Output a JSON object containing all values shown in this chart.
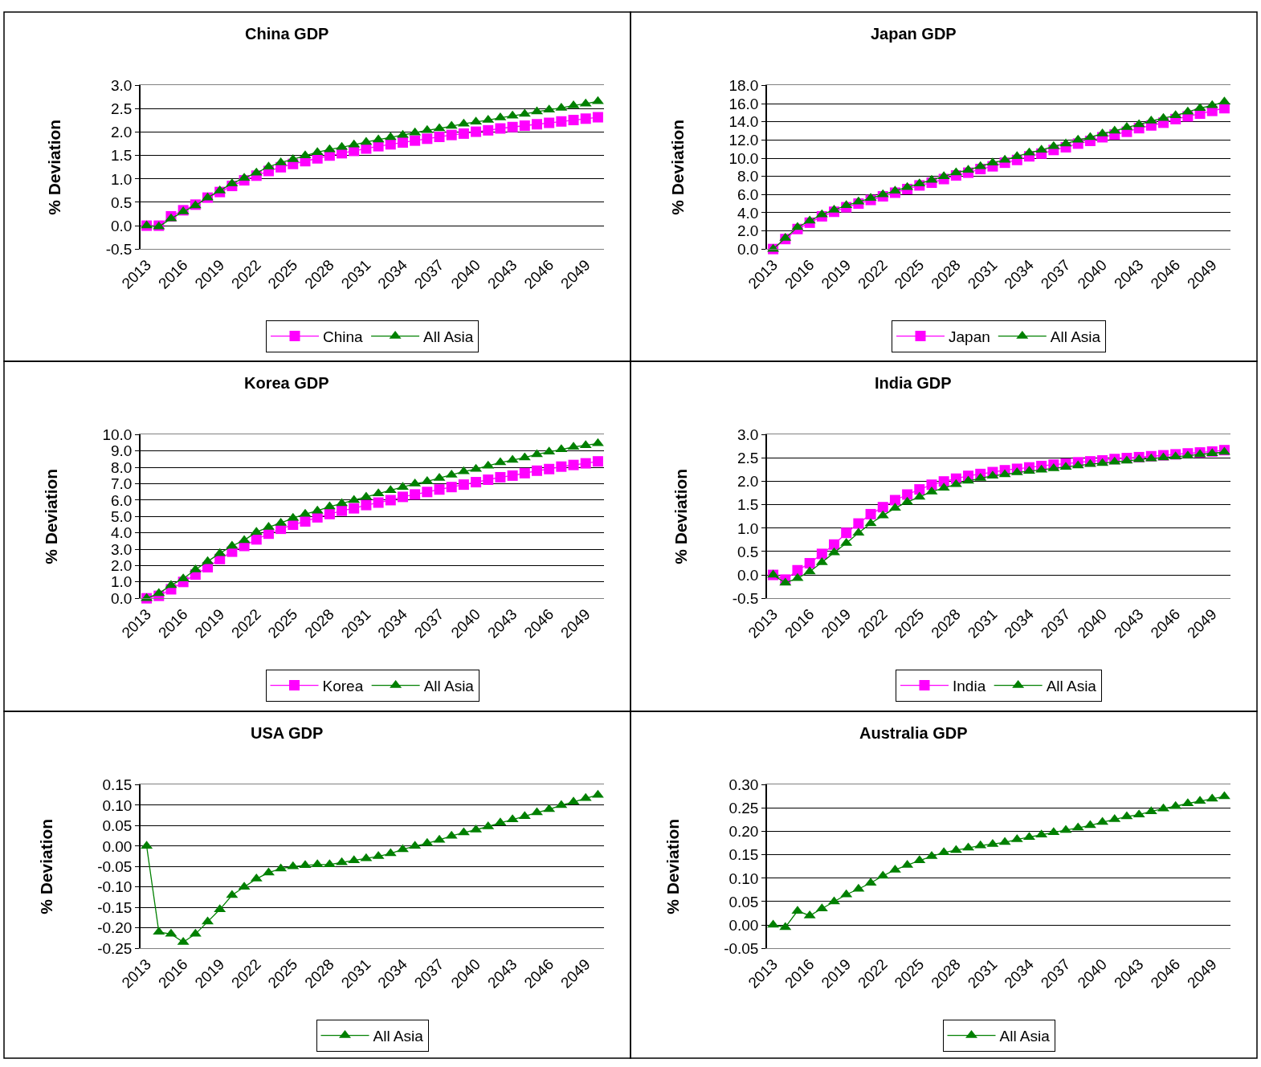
{
  "chart_data": [
    {
      "type": "line",
      "title": "China GDP",
      "ylabel": "% Deviation",
      "categories": [
        "2013",
        null,
        null,
        "2016",
        null,
        null,
        "2019",
        null,
        null,
        "2022",
        null,
        null,
        "2025",
        null,
        null,
        "2028",
        null,
        null,
        "2031",
        null,
        null,
        "2034",
        null,
        null,
        "2037",
        null,
        null,
        "2040",
        null,
        null,
        "2043",
        null,
        null,
        "2046",
        null,
        null,
        "2049",
        null
      ],
      "series": [
        {
          "name": "China",
          "color": "#ff00ff",
          "marker": "square",
          "values": [
            0.0,
            0.0,
            0.2,
            0.33,
            0.45,
            0.6,
            0.72,
            0.85,
            0.97,
            1.07,
            1.17,
            1.25,
            1.32,
            1.38,
            1.44,
            1.5,
            1.55,
            1.6,
            1.65,
            1.7,
            1.74,
            1.78,
            1.82,
            1.86,
            1.9,
            1.94,
            1.97,
            2.01,
            2.04,
            2.08,
            2.11,
            2.14,
            2.17,
            2.2,
            2.23,
            2.26,
            2.29,
            2.32
          ]
        },
        {
          "name": "All Asia",
          "color": "#008000",
          "marker": "triangle",
          "values": [
            0.0,
            -0.02,
            0.15,
            0.3,
            0.43,
            0.6,
            0.75,
            0.9,
            1.02,
            1.13,
            1.26,
            1.35,
            1.42,
            1.5,
            1.57,
            1.63,
            1.68,
            1.73,
            1.79,
            1.84,
            1.89,
            1.94,
            1.99,
            2.04,
            2.08,
            2.13,
            2.18,
            2.22,
            2.26,
            2.31,
            2.35,
            2.39,
            2.44,
            2.48,
            2.52,
            2.57,
            2.61,
            2.66
          ]
        }
      ],
      "ylim": [
        -0.5,
        3.0
      ],
      "yticks": [
        -0.5,
        {
          "value": 0,
          "label": "0.0"
        },
        0.5,
        {
          "value": 1,
          "label": "1.0"
        },
        1.5,
        {
          "value": 2,
          "label": "2.0"
        },
        2.5,
        {
          "value": 3,
          "label": "3.0"
        }
      ],
      "grid": "y",
      "legend": "bottom"
    },
    {
      "type": "line",
      "title": "Japan GDP",
      "ylabel": "% Deviation",
      "categories": [
        "2013",
        null,
        null,
        "2016",
        null,
        null,
        "2019",
        null,
        null,
        "2022",
        null,
        null,
        "2025",
        null,
        null,
        "2028",
        null,
        null,
        "2031",
        null,
        null,
        "2034",
        null,
        null,
        "2037",
        null,
        null,
        "2040",
        null,
        null,
        "2043",
        null,
        null,
        "2046",
        null,
        null,
        "2049",
        null
      ],
      "series": [
        {
          "name": "Japan",
          "color": "#ff00ff",
          "marker": "square",
          "values": [
            0.0,
            1.1,
            2.2,
            2.9,
            3.6,
            4.1,
            4.6,
            5.0,
            5.4,
            5.8,
            6.2,
            6.6,
            7.0,
            7.3,
            7.7,
            8.1,
            8.4,
            8.8,
            9.1,
            9.5,
            9.8,
            10.2,
            10.5,
            10.9,
            11.2,
            11.6,
            11.9,
            12.3,
            12.6,
            12.9,
            13.3,
            13.6,
            13.9,
            14.3,
            14.6,
            14.9,
            15.2,
            15.5
          ]
        },
        {
          "name": "All Asia",
          "color": "#008000",
          "marker": "triangle",
          "values": [
            0.0,
            1.2,
            2.4,
            3.1,
            3.8,
            4.3,
            4.8,
            5.2,
            5.6,
            6.0,
            6.4,
            6.8,
            7.2,
            7.6,
            8.0,
            8.4,
            8.7,
            9.1,
            9.5,
            9.8,
            10.2,
            10.6,
            10.9,
            11.3,
            11.6,
            12.0,
            12.3,
            12.7,
            13.0,
            13.4,
            13.7,
            14.1,
            14.4,
            14.7,
            15.1,
            15.5,
            15.8,
            16.2
          ]
        }
      ],
      "ylim": [
        0,
        18
      ],
      "yticks": [
        {
          "value": 0,
          "label": "0.0"
        },
        {
          "value": 2,
          "label": "2.0"
        },
        {
          "value": 4,
          "label": "4.0"
        },
        {
          "value": 6,
          "label": "6.0"
        },
        {
          "value": 8,
          "label": "8.0"
        },
        {
          "value": 10,
          "label": "10.0"
        },
        {
          "value": 12,
          "label": "12.0"
        },
        {
          "value": 14,
          "label": "14.0"
        },
        {
          "value": 16,
          "label": "16.0"
        },
        {
          "value": 18,
          "label": "18.0"
        }
      ],
      "grid": "y",
      "legend": "bottom"
    },
    {
      "type": "line",
      "title": "Korea GDP",
      "ylabel": "% Deviation",
      "categories": [
        "2013",
        null,
        null,
        "2016",
        null,
        null,
        "2019",
        null,
        null,
        "2022",
        null,
        null,
        "2025",
        null,
        null,
        "2028",
        null,
        null,
        "2031",
        null,
        null,
        "2034",
        null,
        null,
        "2037",
        null,
        null,
        "2040",
        null,
        null,
        "2043",
        null,
        null,
        "2046",
        null,
        null,
        "2049",
        null
      ],
      "series": [
        {
          "name": "Korea",
          "color": "#ff00ff",
          "marker": "square",
          "values": [
            0.0,
            0.15,
            0.55,
            1.0,
            1.45,
            1.9,
            2.4,
            2.85,
            3.2,
            3.6,
            3.95,
            4.25,
            4.5,
            4.7,
            4.95,
            5.15,
            5.35,
            5.5,
            5.7,
            5.85,
            6.0,
            6.2,
            6.35,
            6.5,
            6.65,
            6.8,
            6.95,
            7.1,
            7.25,
            7.4,
            7.5,
            7.65,
            7.8,
            7.9,
            8.05,
            8.15,
            8.25,
            8.37
          ]
        },
        {
          "name": "All Asia",
          "color": "#008000",
          "marker": "triangle",
          "values": [
            0.0,
            0.3,
            0.8,
            1.2,
            1.75,
            2.25,
            2.75,
            3.2,
            3.55,
            4.05,
            4.35,
            4.6,
            4.9,
            5.15,
            5.35,
            5.6,
            5.8,
            6.0,
            6.2,
            6.4,
            6.6,
            6.8,
            7.0,
            7.15,
            7.35,
            7.55,
            7.75,
            7.9,
            8.1,
            8.3,
            8.45,
            8.6,
            8.8,
            8.95,
            9.1,
            9.25,
            9.35,
            9.47
          ]
        }
      ],
      "ylim": [
        0,
        10
      ],
      "yticks": [
        {
          "value": 0,
          "label": "0.0"
        },
        {
          "value": 1,
          "label": "1.0"
        },
        {
          "value": 2,
          "label": "2.0"
        },
        {
          "value": 3,
          "label": "3.0"
        },
        {
          "value": 4,
          "label": "4.0"
        },
        {
          "value": 5,
          "label": "5.0"
        },
        {
          "value": 6,
          "label": "6.0"
        },
        {
          "value": 7,
          "label": "7.0"
        },
        {
          "value": 8,
          "label": "8.0"
        },
        {
          "value": 9,
          "label": "9.0"
        },
        {
          "value": 10,
          "label": "10.0"
        }
      ],
      "grid": "y",
      "legend": "bottom"
    },
    {
      "type": "line",
      "title": "India GDP",
      "ylabel": "% Deviation",
      "categories": [
        "2013",
        null,
        null,
        "2016",
        null,
        null,
        "2019",
        null,
        null,
        "2022",
        null,
        null,
        "2025",
        null,
        null,
        "2028",
        null,
        null,
        "2031",
        null,
        null,
        "2034",
        null,
        null,
        "2037",
        null,
        null,
        "2040",
        null,
        null,
        "2043",
        null,
        null,
        "2046",
        null,
        null,
        "2049",
        null
      ],
      "series": [
        {
          "name": "India",
          "color": "#ff00ff",
          "marker": "square",
          "values": [
            0.0,
            -0.1,
            0.1,
            0.25,
            0.45,
            0.65,
            0.9,
            1.1,
            1.3,
            1.45,
            1.6,
            1.72,
            1.83,
            1.93,
            2.0,
            2.06,
            2.12,
            2.16,
            2.2,
            2.24,
            2.27,
            2.3,
            2.33,
            2.36,
            2.38,
            2.41,
            2.43,
            2.45,
            2.48,
            2.5,
            2.52,
            2.54,
            2.56,
            2.58,
            2.6,
            2.62,
            2.64,
            2.67
          ]
        },
        {
          "name": "All Asia",
          "color": "#008000",
          "marker": "triangle",
          "values": [
            0.0,
            -0.17,
            -0.07,
            0.07,
            0.27,
            0.48,
            0.68,
            0.9,
            1.1,
            1.27,
            1.43,
            1.56,
            1.67,
            1.78,
            1.86,
            1.94,
            2.01,
            2.07,
            2.12,
            2.15,
            2.19,
            2.22,
            2.25,
            2.28,
            2.31,
            2.34,
            2.37,
            2.39,
            2.42,
            2.44,
            2.47,
            2.49,
            2.51,
            2.53,
            2.55,
            2.58,
            2.6,
            2.63
          ]
        }
      ],
      "ylim": [
        -0.5,
        3.0
      ],
      "yticks": [
        -0.5,
        {
          "value": 0,
          "label": "0.0"
        },
        0.5,
        {
          "value": 1,
          "label": "1.0"
        },
        1.5,
        {
          "value": 2,
          "label": "2.0"
        },
        2.5,
        {
          "value": 3,
          "label": "3.0"
        }
      ],
      "grid": "y",
      "legend": "bottom"
    },
    {
      "type": "line",
      "title": "USA GDP",
      "ylabel": "% Deviation",
      "categories": [
        "2013",
        null,
        null,
        "2016",
        null,
        null,
        "2019",
        null,
        null,
        "2022",
        null,
        null,
        "2025",
        null,
        null,
        "2028",
        null,
        null,
        "2031",
        null,
        null,
        "2034",
        null,
        null,
        "2037",
        null,
        null,
        "2040",
        null,
        null,
        "2043",
        null,
        null,
        "2046",
        null,
        null,
        "2049",
        null
      ],
      "series": [
        {
          "name": "All Asia",
          "color": "#008000",
          "marker": "triangle",
          "values": [
            0.0,
            -0.21,
            -0.215,
            -0.235,
            -0.215,
            -0.185,
            -0.155,
            -0.12,
            -0.1,
            -0.08,
            -0.065,
            -0.055,
            -0.05,
            -0.047,
            -0.045,
            -0.045,
            -0.04,
            -0.035,
            -0.03,
            -0.025,
            -0.018,
            -0.008,
            0.0,
            0.007,
            0.015,
            0.025,
            0.033,
            0.04,
            0.048,
            0.057,
            0.065,
            0.073,
            0.082,
            0.09,
            0.1,
            0.108,
            0.117,
            0.125
          ]
        }
      ],
      "ylim": [
        -0.25,
        0.15
      ],
      "yticks": [
        -0.25,
        {
          "value": -0.2,
          "label": "-0.20"
        },
        -0.15,
        {
          "value": -0.1,
          "label": "-0.10"
        },
        -0.05,
        {
          "value": 0,
          "label": "0.00"
        },
        0.05,
        {
          "value": 0.1,
          "label": "0.10"
        },
        0.15
      ],
      "grid": "y",
      "legend": "bottom"
    },
    {
      "type": "line",
      "title": "Australia GDP",
      "ylabel": "% Deviation",
      "categories": [
        "2013",
        null,
        null,
        "2016",
        null,
        null,
        "2019",
        null,
        null,
        "2022",
        null,
        null,
        "2025",
        null,
        null,
        "2028",
        null,
        null,
        "2031",
        null,
        null,
        "2034",
        null,
        null,
        "2037",
        null,
        null,
        "2040",
        null,
        null,
        "2043",
        null,
        null,
        "2046",
        null,
        null,
        "2049",
        null
      ],
      "series": [
        {
          "name": "All Asia",
          "color": "#008000",
          "marker": "triangle",
          "values": [
            0.0,
            -0.005,
            0.03,
            0.02,
            0.035,
            0.05,
            0.065,
            0.077,
            0.09,
            0.105,
            0.118,
            0.128,
            0.138,
            0.147,
            0.155,
            0.16,
            0.165,
            0.17,
            0.173,
            0.177,
            0.183,
            0.188,
            0.193,
            0.198,
            0.203,
            0.208,
            0.213,
            0.22,
            0.226,
            0.232,
            0.236,
            0.243,
            0.249,
            0.254,
            0.26,
            0.265,
            0.27,
            0.275
          ]
        }
      ],
      "ylim": [
        -0.05,
        0.3
      ],
      "yticks": [
        -0.05,
        {
          "value": 0,
          "label": "0.00"
        },
        0.05,
        {
          "value": 0.1,
          "label": "0.10"
        },
        0.15,
        {
          "value": 0.2,
          "label": "0.20"
        },
        0.25,
        {
          "value": 0.3,
          "label": "0.30"
        }
      ],
      "grid": "y",
      "legend": "bottom"
    }
  ]
}
